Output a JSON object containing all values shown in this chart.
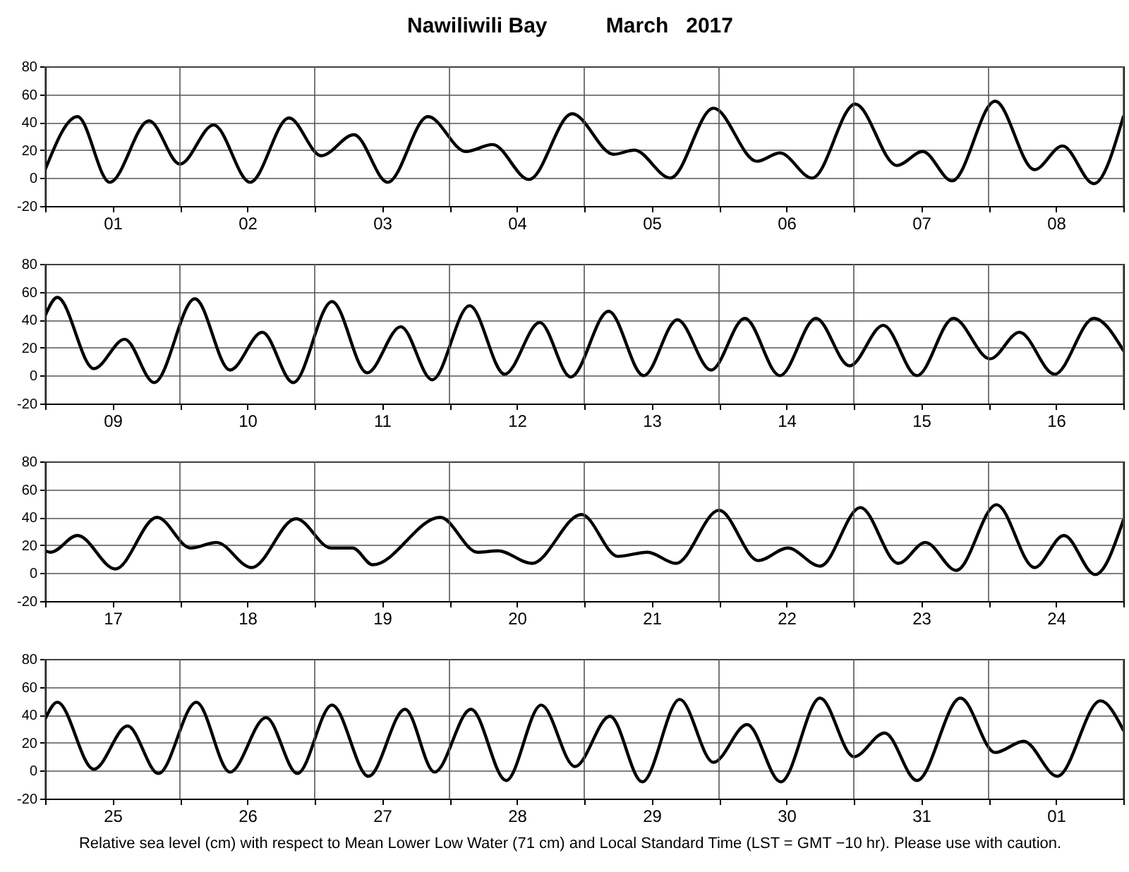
{
  "chart_data": [
    {
      "type": "line",
      "title": "Nawiliwili Bay          March   2017",
      "x": [
        "2017-03-01T00:00",
        "2017-03-01T05:45",
        "2017-03-01T11:30",
        "2017-03-01T18:30",
        "2017-03-02T00:00",
        "2017-03-02T06:00",
        "2017-03-02T12:30",
        "2017-03-02T19:25",
        "2017-03-03T01:10",
        "2017-03-03T07:00",
        "2017-03-03T13:00",
        "2017-03-03T20:10",
        "2017-03-04T02:55",
        "2017-03-04T07:40",
        "2017-03-04T14:10",
        "2017-03-04T21:50",
        "2017-03-05T05:15",
        "2017-03-05T08:55",
        "2017-03-05T15:20",
        "2017-03-05T23:00",
        "2017-03-06T06:45",
        "2017-03-06T10:50",
        "2017-03-06T16:35",
        "2017-03-07T00:15",
        "2017-03-07T07:40",
        "2017-03-07T12:15",
        "2017-03-07T17:30",
        "2017-03-08T01:10",
        "2017-03-08T08:10",
        "2017-03-08T13:10",
        "2017-03-08T18:45",
        "2017-03-09T00:00"
      ],
      "series": [
        {
          "color": "#000000",
          "values": [
            6,
            44,
            -3,
            41,
            10,
            38,
            -3,
            43,
            16,
            31,
            -3,
            44,
            19,
            24,
            -1,
            46,
            17,
            20,
            0,
            50,
            12,
            18,
            0,
            53,
            9,
            19,
            -2,
            55,
            6,
            23,
            -4,
            44
          ]
        }
      ],
      "xlim": [
        "2017-03-01T00:00",
        "2017-03-09T00:00"
      ],
      "xticks": [
        {
          "value": "2017-03-01T00:00",
          "label": null
        },
        {
          "value": "2017-03-01T12:00",
          "label": "01"
        },
        {
          "value": "2017-03-02T00:00",
          "label": null
        },
        {
          "value": "2017-03-02T12:00",
          "label": "02"
        },
        {
          "value": "2017-03-03T00:00",
          "label": null
        },
        {
          "value": "2017-03-03T12:00",
          "label": "03"
        },
        {
          "value": "2017-03-04T00:00",
          "label": null
        },
        {
          "value": "2017-03-04T12:00",
          "label": "04"
        },
        {
          "value": "2017-03-05T00:00",
          "label": null
        },
        {
          "value": "2017-03-05T12:00",
          "label": "05"
        },
        {
          "value": "2017-03-06T00:00",
          "label": null
        },
        {
          "value": "2017-03-06T12:00",
          "label": "06"
        },
        {
          "value": "2017-03-07T00:00",
          "label": null
        },
        {
          "value": "2017-03-07T12:00",
          "label": "07"
        },
        {
          "value": "2017-03-08T00:00",
          "label": null
        },
        {
          "value": "2017-03-08T12:00",
          "label": "08"
        },
        {
          "value": "2017-03-09T00:00",
          "label": null
        }
      ],
      "ylim": [
        -20,
        80
      ],
      "yticks": [
        -20,
        0,
        20,
        40,
        60,
        80
      ],
      "grid": true
    },
    {
      "type": "line",
      "x": [
        "2017-03-09T00:00",
        "2017-03-09T02:10",
        "2017-03-09T08:40",
        "2017-03-09T14:10",
        "2017-03-09T19:25",
        "2017-03-10T02:40",
        "2017-03-10T08:55",
        "2017-03-10T14:40",
        "2017-03-10T20:10",
        "2017-03-11T03:05",
        "2017-03-11T09:20",
        "2017-03-11T15:20",
        "2017-03-11T20:55",
        "2017-03-12T03:35",
        "2017-03-12T09:50",
        "2017-03-12T16:05",
        "2017-03-12T21:35",
        "2017-03-13T04:20",
        "2017-03-13T10:35",
        "2017-03-13T16:35",
        "2017-03-13T22:35",
        "2017-03-14T04:35",
        "2017-03-14T10:50",
        "2017-03-14T17:15",
        "2017-03-14T23:15",
        "2017-03-15T05:15",
        "2017-03-15T11:15",
        "2017-03-15T17:45",
        "2017-03-16T00:15",
        "2017-03-16T05:30",
        "2017-03-16T11:45",
        "2017-03-16T18:45",
        "2017-03-17T00:00"
      ],
      "series": [
        {
          "color": "#000000",
          "values": [
            43,
            56,
            5,
            26,
            -5,
            55,
            4,
            31,
            -5,
            53,
            2,
            35,
            -3,
            50,
            1,
            38,
            -1,
            46,
            0,
            40,
            4,
            41,
            0,
            41,
            7,
            36,
            0,
            41,
            12,
            31,
            1,
            41,
            18
          ]
        }
      ],
      "xlim": [
        "2017-03-09T00:00",
        "2017-03-17T00:00"
      ],
      "xticks": [
        {
          "value": "2017-03-09T00:00",
          "label": null
        },
        {
          "value": "2017-03-09T12:00",
          "label": "09"
        },
        {
          "value": "2017-03-10T00:00",
          "label": null
        },
        {
          "value": "2017-03-10T12:00",
          "label": "10"
        },
        {
          "value": "2017-03-11T00:00",
          "label": null
        },
        {
          "value": "2017-03-11T12:00",
          "label": "11"
        },
        {
          "value": "2017-03-12T00:00",
          "label": null
        },
        {
          "value": "2017-03-12T12:00",
          "label": "12"
        },
        {
          "value": "2017-03-13T00:00",
          "label": null
        },
        {
          "value": "2017-03-13T12:00",
          "label": "13"
        },
        {
          "value": "2017-03-14T00:00",
          "label": null
        },
        {
          "value": "2017-03-14T12:00",
          "label": "14"
        },
        {
          "value": "2017-03-15T00:00",
          "label": null
        },
        {
          "value": "2017-03-15T12:00",
          "label": "15"
        },
        {
          "value": "2017-03-16T00:00",
          "label": null
        },
        {
          "value": "2017-03-16T12:00",
          "label": "16"
        },
        {
          "value": "2017-03-17T00:00",
          "label": null
        }
      ],
      "ylim": [
        -20,
        80
      ],
      "yticks": [
        -20,
        0,
        20,
        40,
        60,
        80
      ],
      "grid": true
    },
    {
      "type": "line",
      "x": [
        "2017-03-17T00:00",
        "2017-03-17T01:00",
        "2017-03-17T05:45",
        "2017-03-17T12:30",
        "2017-03-17T19:55",
        "2017-03-18T01:55",
        "2017-03-18T06:30",
        "2017-03-18T12:45",
        "2017-03-18T20:40",
        "2017-03-19T02:55",
        "2017-03-19T06:45",
        "2017-03-19T10:20",
        "2017-03-19T22:20",
        "2017-03-20T05:00",
        "2017-03-20T08:40",
        "2017-03-20T14:40",
        "2017-03-20T23:30",
        "2017-03-21T06:00",
        "2017-03-21T11:15",
        "2017-03-21T16:20",
        "2017-03-22T00:00",
        "2017-03-22T07:00",
        "2017-03-22T12:15",
        "2017-03-22T18:00",
        "2017-03-23T01:10",
        "2017-03-23T07:55",
        "2017-03-23T12:45",
        "2017-03-23T18:15",
        "2017-03-24T01:25",
        "2017-03-24T08:10",
        "2017-03-24T13:25",
        "2017-03-24T19:00",
        "2017-03-25T00:00"
      ],
      "series": [
        {
          "color": "#000000",
          "values": [
            16,
            15,
            27,
            3,
            40,
            18,
            22,
            4,
            39,
            18,
            18,
            6,
            40,
            15,
            16,
            7,
            42,
            12,
            15,
            7,
            45,
            9,
            18,
            5,
            47,
            7,
            22,
            2,
            49,
            4,
            27,
            -1,
            38
          ]
        }
      ],
      "xlim": [
        "2017-03-17T00:00",
        "2017-03-25T00:00"
      ],
      "xticks": [
        {
          "value": "2017-03-17T00:00",
          "label": null
        },
        {
          "value": "2017-03-17T12:00",
          "label": "17"
        },
        {
          "value": "2017-03-18T00:00",
          "label": null
        },
        {
          "value": "2017-03-18T12:00",
          "label": "18"
        },
        {
          "value": "2017-03-19T00:00",
          "label": null
        },
        {
          "value": "2017-03-19T12:00",
          "label": "19"
        },
        {
          "value": "2017-03-20T00:00",
          "label": null
        },
        {
          "value": "2017-03-20T12:00",
          "label": "20"
        },
        {
          "value": "2017-03-21T00:00",
          "label": null
        },
        {
          "value": "2017-03-21T12:00",
          "label": "21"
        },
        {
          "value": "2017-03-22T00:00",
          "label": null
        },
        {
          "value": "2017-03-22T12:00",
          "label": "22"
        },
        {
          "value": "2017-03-23T00:00",
          "label": null
        },
        {
          "value": "2017-03-23T12:00",
          "label": "23"
        },
        {
          "value": "2017-03-24T00:00",
          "label": null
        },
        {
          "value": "2017-03-24T12:00",
          "label": "24"
        },
        {
          "value": "2017-03-25T00:00",
          "label": null
        }
      ],
      "ylim": [
        -20,
        80
      ],
      "yticks": [
        -20,
        0,
        20,
        40,
        60,
        80
      ],
      "grid": true
    },
    {
      "type": "line",
      "x": [
        "2017-03-25T00:00",
        "2017-03-25T02:10",
        "2017-03-25T08:40",
        "2017-03-25T14:40",
        "2017-03-25T20:10",
        "2017-03-26T02:55",
        "2017-03-26T08:55",
        "2017-03-26T15:20",
        "2017-03-26T20:55",
        "2017-03-27T03:05",
        "2017-03-27T09:35",
        "2017-03-27T16:05",
        "2017-03-27T21:20",
        "2017-03-28T03:50",
        "2017-03-28T10:05",
        "2017-03-28T16:20",
        "2017-03-28T22:20",
        "2017-03-29T04:35",
        "2017-03-29T10:20",
        "2017-03-29T17:00",
        "2017-03-29T23:00",
        "2017-03-30T05:00",
        "2017-03-30T11:00",
        "2017-03-30T18:00",
        "2017-03-31T00:00",
        "2017-03-31T05:30",
        "2017-03-31T11:15",
        "2017-03-31T19:00",
        "2017-04-01T01:10",
        "2017-04-01T06:15",
        "2017-04-01T12:15",
        "2017-04-01T19:55",
        "2017-04-02T00:00"
      ],
      "series": [
        {
          "color": "#000000",
          "values": [
            37,
            49,
            1,
            32,
            -2,
            49,
            -1,
            38,
            -2,
            47,
            -4,
            44,
            -1,
            44,
            -7,
            47,
            3,
            39,
            -8,
            51,
            6,
            33,
            -8,
            52,
            10,
            27,
            -7,
            52,
            13,
            21,
            -4,
            50,
            29
          ]
        }
      ],
      "xlim": [
        "2017-03-25T00:00",
        "2017-04-02T00:00"
      ],
      "xticks": [
        {
          "value": "2017-03-25T00:00",
          "label": null
        },
        {
          "value": "2017-03-25T12:00",
          "label": "25"
        },
        {
          "value": "2017-03-26T00:00",
          "label": null
        },
        {
          "value": "2017-03-26T12:00",
          "label": "26"
        },
        {
          "value": "2017-03-27T00:00",
          "label": null
        },
        {
          "value": "2017-03-27T12:00",
          "label": "27"
        },
        {
          "value": "2017-03-28T00:00",
          "label": null
        },
        {
          "value": "2017-03-28T12:00",
          "label": "28"
        },
        {
          "value": "2017-03-29T00:00",
          "label": null
        },
        {
          "value": "2017-03-29T12:00",
          "label": "29"
        },
        {
          "value": "2017-03-30T00:00",
          "label": null
        },
        {
          "value": "2017-03-30T12:00",
          "label": "30"
        },
        {
          "value": "2017-03-31T00:00",
          "label": null
        },
        {
          "value": "2017-03-31T12:00",
          "label": "31"
        },
        {
          "value": "2017-04-01T00:00",
          "label": null
        },
        {
          "value": "2017-04-01T12:00",
          "label": "01"
        },
        {
          "value": "2017-04-02T00:00",
          "label": null
        }
      ],
      "ylim": [
        -20,
        80
      ],
      "yticks": [
        -20,
        0,
        20,
        40,
        60,
        80
      ],
      "grid": true,
      "annotations": [
        "Relative sea level (cm) with respect to Mean Lower Low Water (71 cm) and Local Standard Time (LST = GMT −10 hr). Please use with caution."
      ]
    }
  ]
}
